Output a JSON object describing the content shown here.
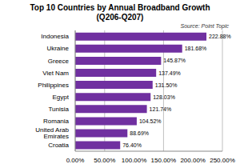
{
  "chart_data": {
    "type": "bar",
    "title": "Top 10 Countries by Annual Broadband Growth",
    "subtitle": "(Q206-Q207)",
    "annotations": [
      "Source: Point Topic"
    ],
    "orientation": "horizontal",
    "categories": [
      "Indonesia",
      "Ukraine",
      "Greece",
      "Viet Nam",
      "Philippines",
      "Egypt",
      "Tunisia",
      "Romania",
      "United Arab Emirates",
      "Croatia"
    ],
    "values": [
      222.88,
      181.68,
      145.87,
      137.49,
      131.5,
      128.03,
      121.74,
      104.52,
      88.69,
      76.4
    ],
    "value_labels": [
      "222.88%",
      "181.68%",
      "145.87%",
      "137.49%",
      "131.50%",
      "128.03%",
      "121.74%",
      "104.52%",
      "88.69%",
      "76.40%"
    ],
    "data_labels": true,
    "color": "#7030a0",
    "xlim": [
      0,
      250
    ],
    "xticks": [
      {
        "value": 0,
        "label": "0.00%"
      },
      {
        "value": 50,
        "label": "50.00%"
      },
      {
        "value": 100,
        "label": "100.00%"
      },
      {
        "value": 150,
        "label": "150.00%"
      },
      {
        "value": 200,
        "label": "200.00%"
      },
      {
        "value": 250,
        "label": "250.00%"
      }
    ],
    "grid": true
  }
}
